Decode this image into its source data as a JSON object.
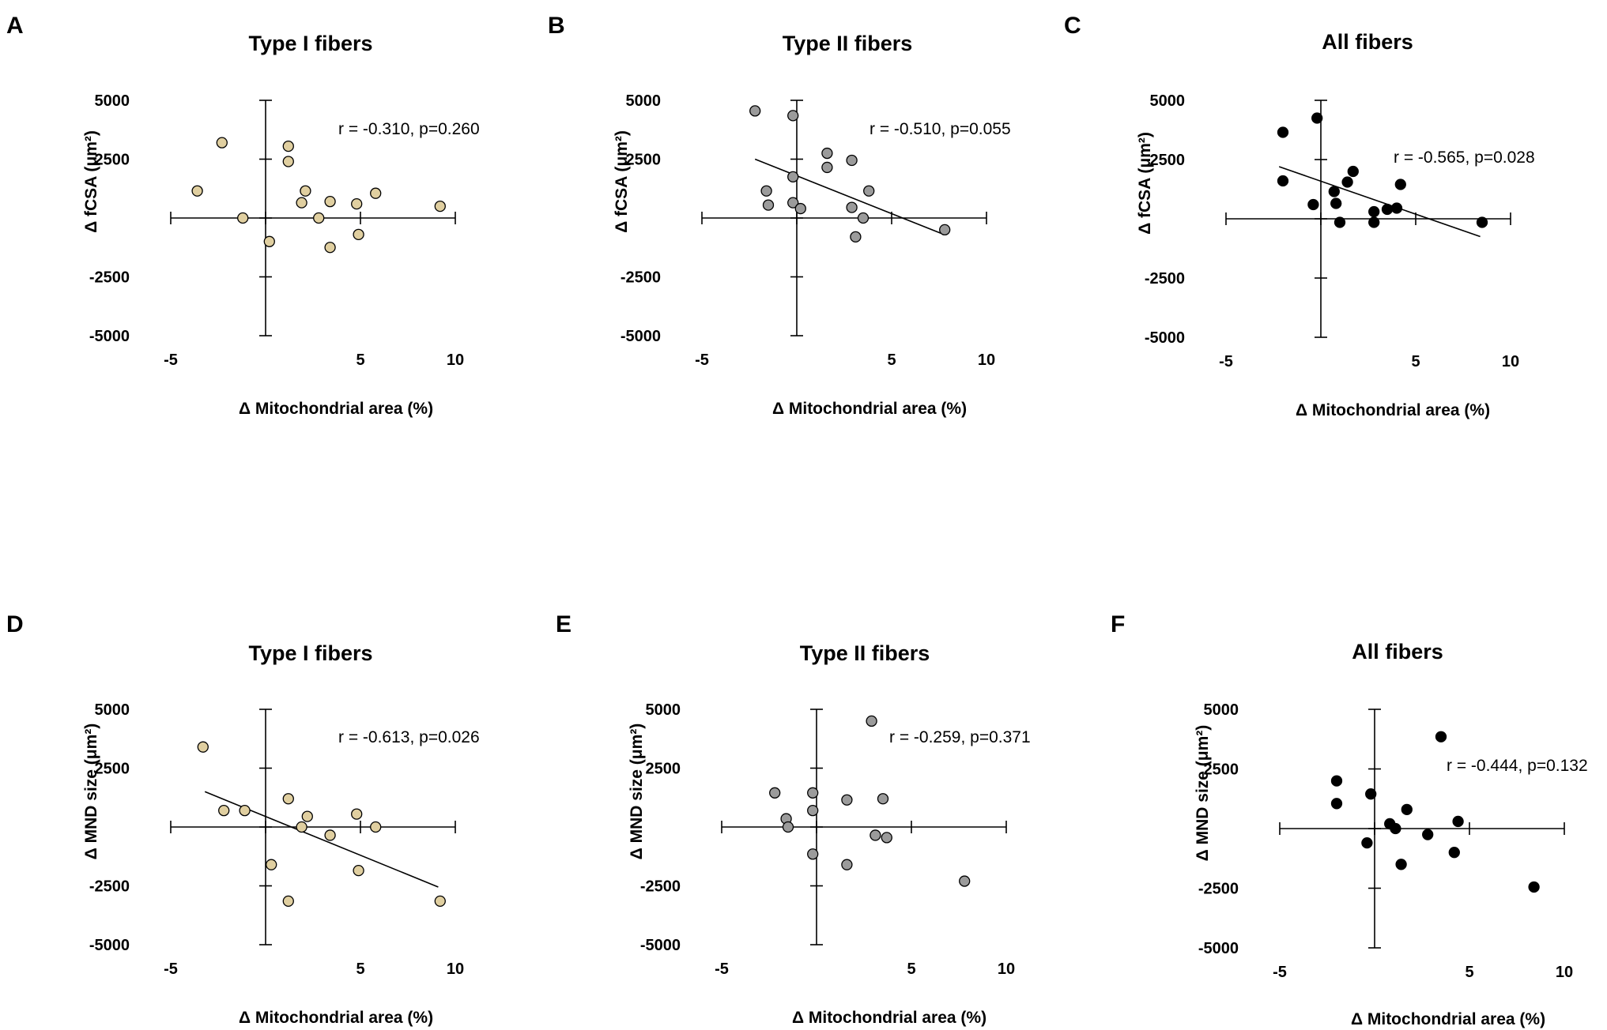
{
  "colors": {
    "type1": "#E0CFA0",
    "type2": "#9B9B9B",
    "all": "#000000",
    "axis": "#000000"
  },
  "chart_data": [
    {
      "id": "A",
      "letter": "A",
      "type": "scatter",
      "title": "Type I fibers",
      "xlabel": "Δ Mitochondrial area (%)",
      "ylabel": "Δ fCSA (μm²)",
      "xlim": [
        -5,
        10
      ],
      "ylim": [
        -5000,
        5000
      ],
      "xticks": [
        -5,
        5,
        10
      ],
      "yticks": [
        5000,
        2500,
        -2500,
        -5000
      ],
      "stat": "r = -0.310, p=0.260",
      "marker_color": "type1",
      "fit": null,
      "points": [
        {
          "x": -3.6,
          "y": 1150
        },
        {
          "x": -2.3,
          "y": 3200
        },
        {
          "x": -1.2,
          "y": 0
        },
        {
          "x": 0.2,
          "y": -1000
        },
        {
          "x": 1.2,
          "y": 3050
        },
        {
          "x": 1.2,
          "y": 2400
        },
        {
          "x": 2.1,
          "y": 1150
        },
        {
          "x": 1.9,
          "y": 650
        },
        {
          "x": 2.8,
          "y": 0
        },
        {
          "x": 3.4,
          "y": 700
        },
        {
          "x": 3.4,
          "y": -1250
        },
        {
          "x": 4.8,
          "y": 600
        },
        {
          "x": 4.9,
          "y": -700
        },
        {
          "x": 5.8,
          "y": 1050
        },
        {
          "x": 9.2,
          "y": 500
        }
      ]
    },
    {
      "id": "B",
      "letter": "B",
      "type": "scatter",
      "title": "Type II fibers",
      "xlabel": "Δ Mitochondrial area (%)",
      "ylabel": "Δ fCSA (μm²)",
      "xlim": [
        -5,
        10
      ],
      "ylim": [
        -5000,
        5000
      ],
      "xticks": [
        -5,
        5,
        10
      ],
      "yticks": [
        5000,
        2500,
        -2500,
        -5000
      ],
      "stat": "r = -0.510, p=0.055",
      "marker_color": "type2",
      "fit": [
        [
          -2.2,
          2500
        ],
        [
          7.6,
          -650
        ]
      ],
      "points": [
        {
          "x": -2.2,
          "y": 4550
        },
        {
          "x": -0.2,
          "y": 4350
        },
        {
          "x": -1.6,
          "y": 1150
        },
        {
          "x": -1.5,
          "y": 550
        },
        {
          "x": -0.2,
          "y": 1750
        },
        {
          "x": -0.2,
          "y": 650
        },
        {
          "x": 0.2,
          "y": 400
        },
        {
          "x": 1.6,
          "y": 2750
        },
        {
          "x": 1.6,
          "y": 2150
        },
        {
          "x": 2.9,
          "y": 2450
        },
        {
          "x": 3.8,
          "y": 1150
        },
        {
          "x": 2.9,
          "y": 450
        },
        {
          "x": 3.5,
          "y": 0
        },
        {
          "x": 3.1,
          "y": -800
        },
        {
          "x": 7.8,
          "y": -500
        }
      ]
    },
    {
      "id": "C",
      "letter": "C",
      "type": "scatter",
      "title": "All fibers",
      "xlabel": "Δ Mitochondrial area (%)",
      "ylabel": "Δ fCSA (μm²)",
      "xlim": [
        -5,
        10
      ],
      "ylim": [
        -5000,
        5000
      ],
      "xticks": [
        -5,
        5,
        10
      ],
      "yticks": [
        5000,
        2500,
        -2500,
        -5000
      ],
      "stat": "r = -0.565, p=0.028",
      "marker_color": "all",
      "fit": [
        [
          -2.2,
          2200
        ],
        [
          8.4,
          -750
        ]
      ],
      "points": [
        {
          "x": -2.0,
          "y": 3650
        },
        {
          "x": -0.2,
          "y": 4250
        },
        {
          "x": -2.0,
          "y": 1600
        },
        {
          "x": -0.4,
          "y": 600
        },
        {
          "x": 0.7,
          "y": 1150
        },
        {
          "x": 0.8,
          "y": 650
        },
        {
          "x": 1.0,
          "y": -150
        },
        {
          "x": 1.4,
          "y": 1550
        },
        {
          "x": 1.7,
          "y": 2000
        },
        {
          "x": 2.8,
          "y": 300
        },
        {
          "x": 2.8,
          "y": -150
        },
        {
          "x": 3.5,
          "y": 400
        },
        {
          "x": 4.0,
          "y": 450
        },
        {
          "x": 4.2,
          "y": 1450
        },
        {
          "x": 8.5,
          "y": -150
        }
      ]
    },
    {
      "id": "D",
      "letter": "D",
      "type": "scatter",
      "title": "Type I fibers",
      "xlabel": "Δ Mitochondrial area (%)",
      "ylabel": "Δ MND size (μm²)",
      "xlim": [
        -5,
        10
      ],
      "ylim": [
        -5000,
        5000
      ],
      "xticks": [
        -5,
        5,
        10
      ],
      "yticks": [
        5000,
        2500,
        -2500,
        -5000
      ],
      "stat": "r = -0.613, p=0.026",
      "marker_color": "type1",
      "fit": [
        [
          -3.2,
          1500
        ],
        [
          9.1,
          -2550
        ]
      ],
      "points": [
        {
          "x": -3.3,
          "y": 3400
        },
        {
          "x": -2.2,
          "y": 700
        },
        {
          "x": -1.1,
          "y": 700
        },
        {
          "x": 0.3,
          "y": -1600
        },
        {
          "x": 1.2,
          "y": 1200
        },
        {
          "x": 1.2,
          "y": -3150
        },
        {
          "x": 1.9,
          "y": 0
        },
        {
          "x": 2.2,
          "y": 450
        },
        {
          "x": 3.4,
          "y": -350
        },
        {
          "x": 4.8,
          "y": 550
        },
        {
          "x": 4.9,
          "y": -1850
        },
        {
          "x": 5.8,
          "y": 0
        },
        {
          "x": 9.2,
          "y": -3150
        }
      ]
    },
    {
      "id": "E",
      "letter": "E",
      "type": "scatter",
      "title": "Type II fibers",
      "xlabel": "Δ Mitochondrial area (%)",
      "ylabel": "Δ MND size (μm²)",
      "xlim": [
        -5,
        10
      ],
      "ylim": [
        -5000,
        5000
      ],
      "xticks": [
        -5,
        5,
        10
      ],
      "yticks": [
        5000,
        2500,
        -2500,
        -5000
      ],
      "stat": "r = -0.259, p=0.371",
      "marker_color": "type2",
      "fit": null,
      "points": [
        {
          "x": 2.9,
          "y": 4500
        },
        {
          "x": -2.2,
          "y": 1450
        },
        {
          "x": -0.2,
          "y": 1450
        },
        {
          "x": -1.6,
          "y": 350
        },
        {
          "x": -1.5,
          "y": 0
        },
        {
          "x": -0.2,
          "y": 700
        },
        {
          "x": -0.2,
          "y": -1150
        },
        {
          "x": 1.6,
          "y": 1150
        },
        {
          "x": 1.6,
          "y": -1600
        },
        {
          "x": 3.5,
          "y": 1200
        },
        {
          "x": 3.1,
          "y": -350
        },
        {
          "x": 3.7,
          "y": -450
        },
        {
          "x": 7.8,
          "y": -2300
        }
      ]
    },
    {
      "id": "F",
      "letter": "F",
      "type": "scatter",
      "title": "All fibers",
      "xlabel": "Δ Mitochondrial area (%)",
      "ylabel": "Δ MND size (μm²)",
      "xlim": [
        -5,
        10
      ],
      "ylim": [
        -5000,
        5000
      ],
      "xticks": [
        -5,
        5,
        10
      ],
      "yticks": [
        5000,
        2500,
        -2500,
        -5000
      ],
      "stat": "r = -0.444, p=0.132",
      "marker_color": "all",
      "fit": null,
      "points": [
        {
          "x": 3.5,
          "y": 3850
        },
        {
          "x": -2.0,
          "y": 2000
        },
        {
          "x": -2.0,
          "y": 1050
        },
        {
          "x": -0.2,
          "y": 1450
        },
        {
          "x": -0.4,
          "y": -600
        },
        {
          "x": 0.8,
          "y": 200
        },
        {
          "x": 1.1,
          "y": 0
        },
        {
          "x": 1.4,
          "y": -1500
        },
        {
          "x": 1.7,
          "y": 800
        },
        {
          "x": 2.8,
          "y": -250
        },
        {
          "x": 4.2,
          "y": -1000
        },
        {
          "x": 4.4,
          "y": 300
        },
        {
          "x": 8.4,
          "y": -2450
        }
      ]
    }
  ]
}
